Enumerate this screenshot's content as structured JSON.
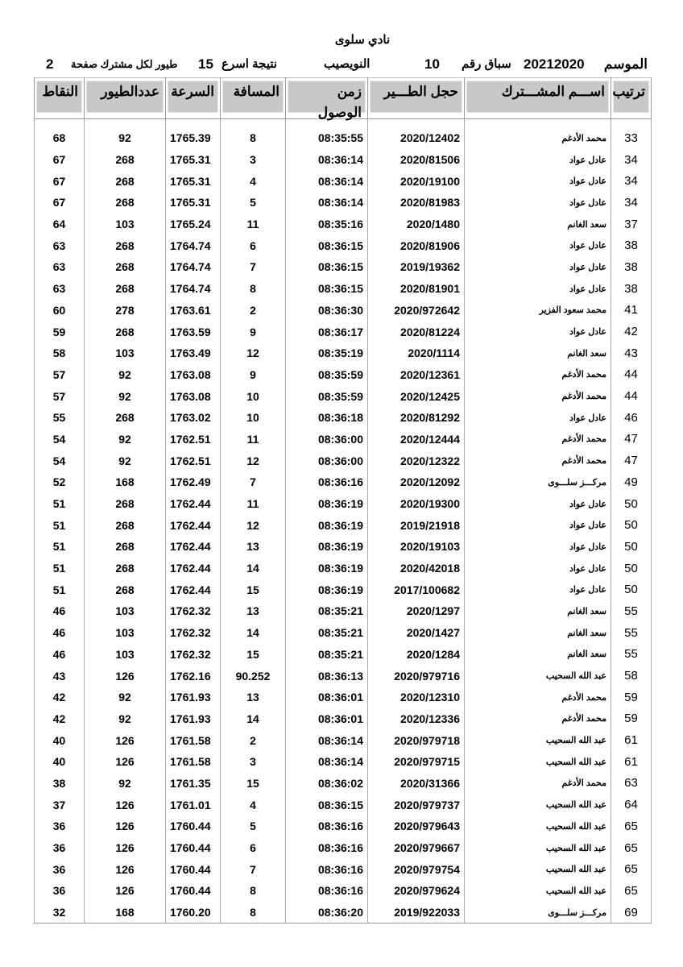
{
  "title": "نادي سلوى",
  "info": {
    "season_label": "الموسم",
    "season_value": "20212020",
    "race_label": "سباق رقم",
    "race_value": "10",
    "location": "النويصيب",
    "fastest_label": "نتيجة اسرع",
    "fastest_value": "15",
    "per_member_label": "طيور لكل مشترك صفحة",
    "page_value": "2"
  },
  "columns": [
    "ترتيب",
    "اســـم المشـــترك",
    "حجل الطـــير",
    "زمن الوصول",
    "المسافة",
    "السرعة",
    "عددالطيور",
    "النقاط"
  ],
  "rows": [
    [
      "33",
      "محمد الأدغم",
      "2020/12402",
      "08:35:55",
      "8",
      "1765.39",
      "92",
      "68"
    ],
    [
      "34",
      "عادل عواد",
      "2020/81506",
      "08:36:14",
      "3",
      "1765.31",
      "268",
      "67"
    ],
    [
      "34",
      "عادل عواد",
      "2020/19100",
      "08:36:14",
      "4",
      "1765.31",
      "268",
      "67"
    ],
    [
      "34",
      "عادل عواد",
      "2020/81983",
      "08:36:14",
      "5",
      "1765.31",
      "268",
      "67"
    ],
    [
      "37",
      "سعد الغانم",
      "2020/1480",
      "08:35:16",
      "11",
      "1765.24",
      "103",
      "64"
    ],
    [
      "38",
      "عادل عواد",
      "2020/81906",
      "08:36:15",
      "6",
      "1764.74",
      "268",
      "63"
    ],
    [
      "38",
      "عادل عواد",
      "2019/19362",
      "08:36:15",
      "7",
      "1764.74",
      "268",
      "63"
    ],
    [
      "38",
      "عادل عواد",
      "2020/81901",
      "08:36:15",
      "8",
      "1764.74",
      "268",
      "63"
    ],
    [
      "41",
      "محمد سعود الفزير",
      "2020/972642",
      "08:36:30",
      "2",
      "1763.61",
      "278",
      "60"
    ],
    [
      "42",
      "عادل عواد",
      "2020/81224",
      "08:36:17",
      "9",
      "1763.59",
      "268",
      "59"
    ],
    [
      "43",
      "سعد الغانم",
      "2020/1114",
      "08:35:19",
      "12",
      "1763.49",
      "103",
      "58"
    ],
    [
      "44",
      "محمد الأدغم",
      "2020/12361",
      "08:35:59",
      "9",
      "1763.08",
      "92",
      "57"
    ],
    [
      "44",
      "محمد الأدغم",
      "2020/12425",
      "08:35:59",
      "10",
      "1763.08",
      "92",
      "57"
    ],
    [
      "46",
      "عادل عواد",
      "2020/81292",
      "08:36:18",
      "10",
      "1763.02",
      "268",
      "55"
    ],
    [
      "47",
      "محمد الأدغم",
      "2020/12444",
      "08:36:00",
      "11",
      "1762.51",
      "92",
      "54"
    ],
    [
      "47",
      "محمد الأدغم",
      "2020/12322",
      "08:36:00",
      "12",
      "1762.51",
      "92",
      "54"
    ],
    [
      "49",
      "مركـــز سلـــوى",
      "2020/12092",
      "08:36:16",
      "7",
      "1762.49",
      "168",
      "52"
    ],
    [
      "50",
      "عادل عواد",
      "2020/19300",
      "08:36:19",
      "11",
      "1762.44",
      "268",
      "51"
    ],
    [
      "50",
      "عادل عواد",
      "2019/21918",
      "08:36:19",
      "12",
      "1762.44",
      "268",
      "51"
    ],
    [
      "50",
      "عادل عواد",
      "2020/19103",
      "08:36:19",
      "13",
      "1762.44",
      "268",
      "51"
    ],
    [
      "50",
      "عادل عواد",
      "2020/42018",
      "08:36:19",
      "14",
      "1762.44",
      "268",
      "51"
    ],
    [
      "50",
      "عادل عواد",
      "2017/100682",
      "08:36:19",
      "15",
      "1762.44",
      "268",
      "51"
    ],
    [
      "55",
      "سعد الغانم",
      "2020/1297",
      "08:35:21",
      "13",
      "1762.32",
      "103",
      "46"
    ],
    [
      "55",
      "سعد الغانم",
      "2020/1427",
      "08:35:21",
      "14",
      "1762.32",
      "103",
      "46"
    ],
    [
      "55",
      "سعد الغانم",
      "2020/1284",
      "08:35:21",
      "15",
      "1762.32",
      "103",
      "46"
    ],
    [
      "58",
      "عبد الله السحيب",
      "2020/979716",
      "08:36:13",
      "90.252",
      "1762.16",
      "126",
      "43"
    ],
    [
      "59",
      "محمد الأدغم",
      "2020/12310",
      "08:36:01",
      "13",
      "1761.93",
      "92",
      "42"
    ],
    [
      "59",
      "محمد الأدغم",
      "2020/12336",
      "08:36:01",
      "14",
      "1761.93",
      "92",
      "42"
    ],
    [
      "61",
      "عبد الله السحيب",
      "2020/979718",
      "08:36:14",
      "2",
      "1761.58",
      "126",
      "40"
    ],
    [
      "61",
      "عبد الله السحيب",
      "2020/979715",
      "08:36:14",
      "3",
      "1761.58",
      "126",
      "40"
    ],
    [
      "63",
      "محمد الأدغم",
      "2020/31366",
      "08:36:02",
      "15",
      "1761.35",
      "92",
      "38"
    ],
    [
      "64",
      "عبد الله السحيب",
      "2020/979737",
      "08:36:15",
      "4",
      "1761.01",
      "126",
      "37"
    ],
    [
      "65",
      "عبد الله السحيب",
      "2020/979643",
      "08:36:16",
      "5",
      "1760.44",
      "126",
      "36"
    ],
    [
      "65",
      "عبد الله السحيب",
      "2020/979667",
      "08:36:16",
      "6",
      "1760.44",
      "126",
      "36"
    ],
    [
      "65",
      "عبد الله السحيب",
      "2020/979754",
      "08:36:16",
      "7",
      "1760.44",
      "126",
      "36"
    ],
    [
      "65",
      "عبد الله السحيب",
      "2020/979624",
      "08:36:16",
      "8",
      "1760.44",
      "126",
      "36"
    ],
    [
      "69",
      "مركـــز سلـــوى",
      "2019/922033",
      "08:36:20",
      "8",
      "1760.20",
      "168",
      "32"
    ]
  ]
}
